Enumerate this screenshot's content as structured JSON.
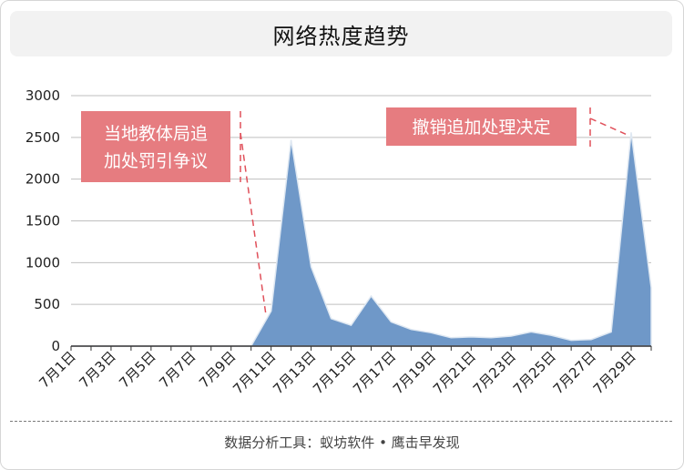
{
  "header": {
    "title": "网络热度趋势"
  },
  "footer": {
    "text": "数据分析工具：蚁坊软件 • 鹰击早发现"
  },
  "colors": {
    "area": "#6f98c8",
    "area_stroke": "#dfe8f2",
    "grid": "#bfbfbf",
    "annotation": "#e67c80",
    "annotation_line": "#e0505a"
  },
  "chart_data": {
    "type": "area",
    "title": "网络热度趋势",
    "xlabel": "",
    "ylabel": "",
    "ylim": [
      0,
      3000
    ],
    "yticks": [
      "0",
      "500",
      "1000",
      "1500",
      "2000",
      "2500",
      "3000"
    ],
    "x_tick_labels": [
      "7月1日",
      "7月3日",
      "7月5日",
      "7月7日",
      "7月9日",
      "7月11日",
      "7月13日",
      "7月15日",
      "7月17日",
      "7月19日",
      "7月21日",
      "7月23日",
      "7月25日",
      "7月27日",
      "7月29日"
    ],
    "x": [
      "7月1日",
      "7月2日",
      "7月3日",
      "7月4日",
      "7月5日",
      "7月6日",
      "7月7日",
      "7月8日",
      "7月9日",
      "7月10日",
      "7月11日",
      "7月12日",
      "7月13日",
      "7月14日",
      "7月15日",
      "7月16日",
      "7月17日",
      "7月18日",
      "7月19日",
      "7月20日",
      "7月21日",
      "7月22日",
      "7月23日",
      "7月24日",
      "7月25日",
      "7月26日",
      "7月27日",
      "7月28日",
      "7月29日",
      "7月30日"
    ],
    "values": [
      0,
      0,
      0,
      0,
      0,
      0,
      0,
      0,
      0,
      0,
      420,
      2470,
      950,
      330,
      250,
      600,
      290,
      200,
      160,
      100,
      110,
      100,
      120,
      170,
      130,
      70,
      80,
      170,
      2560,
      700
    ],
    "grid": true,
    "annotations": [
      {
        "lines": [
          "当地教体局追",
          "加处罚引争议"
        ],
        "target": "7月11日"
      },
      {
        "lines": [
          "撤销追加处理决定"
        ],
        "target": "7月29日"
      }
    ]
  }
}
